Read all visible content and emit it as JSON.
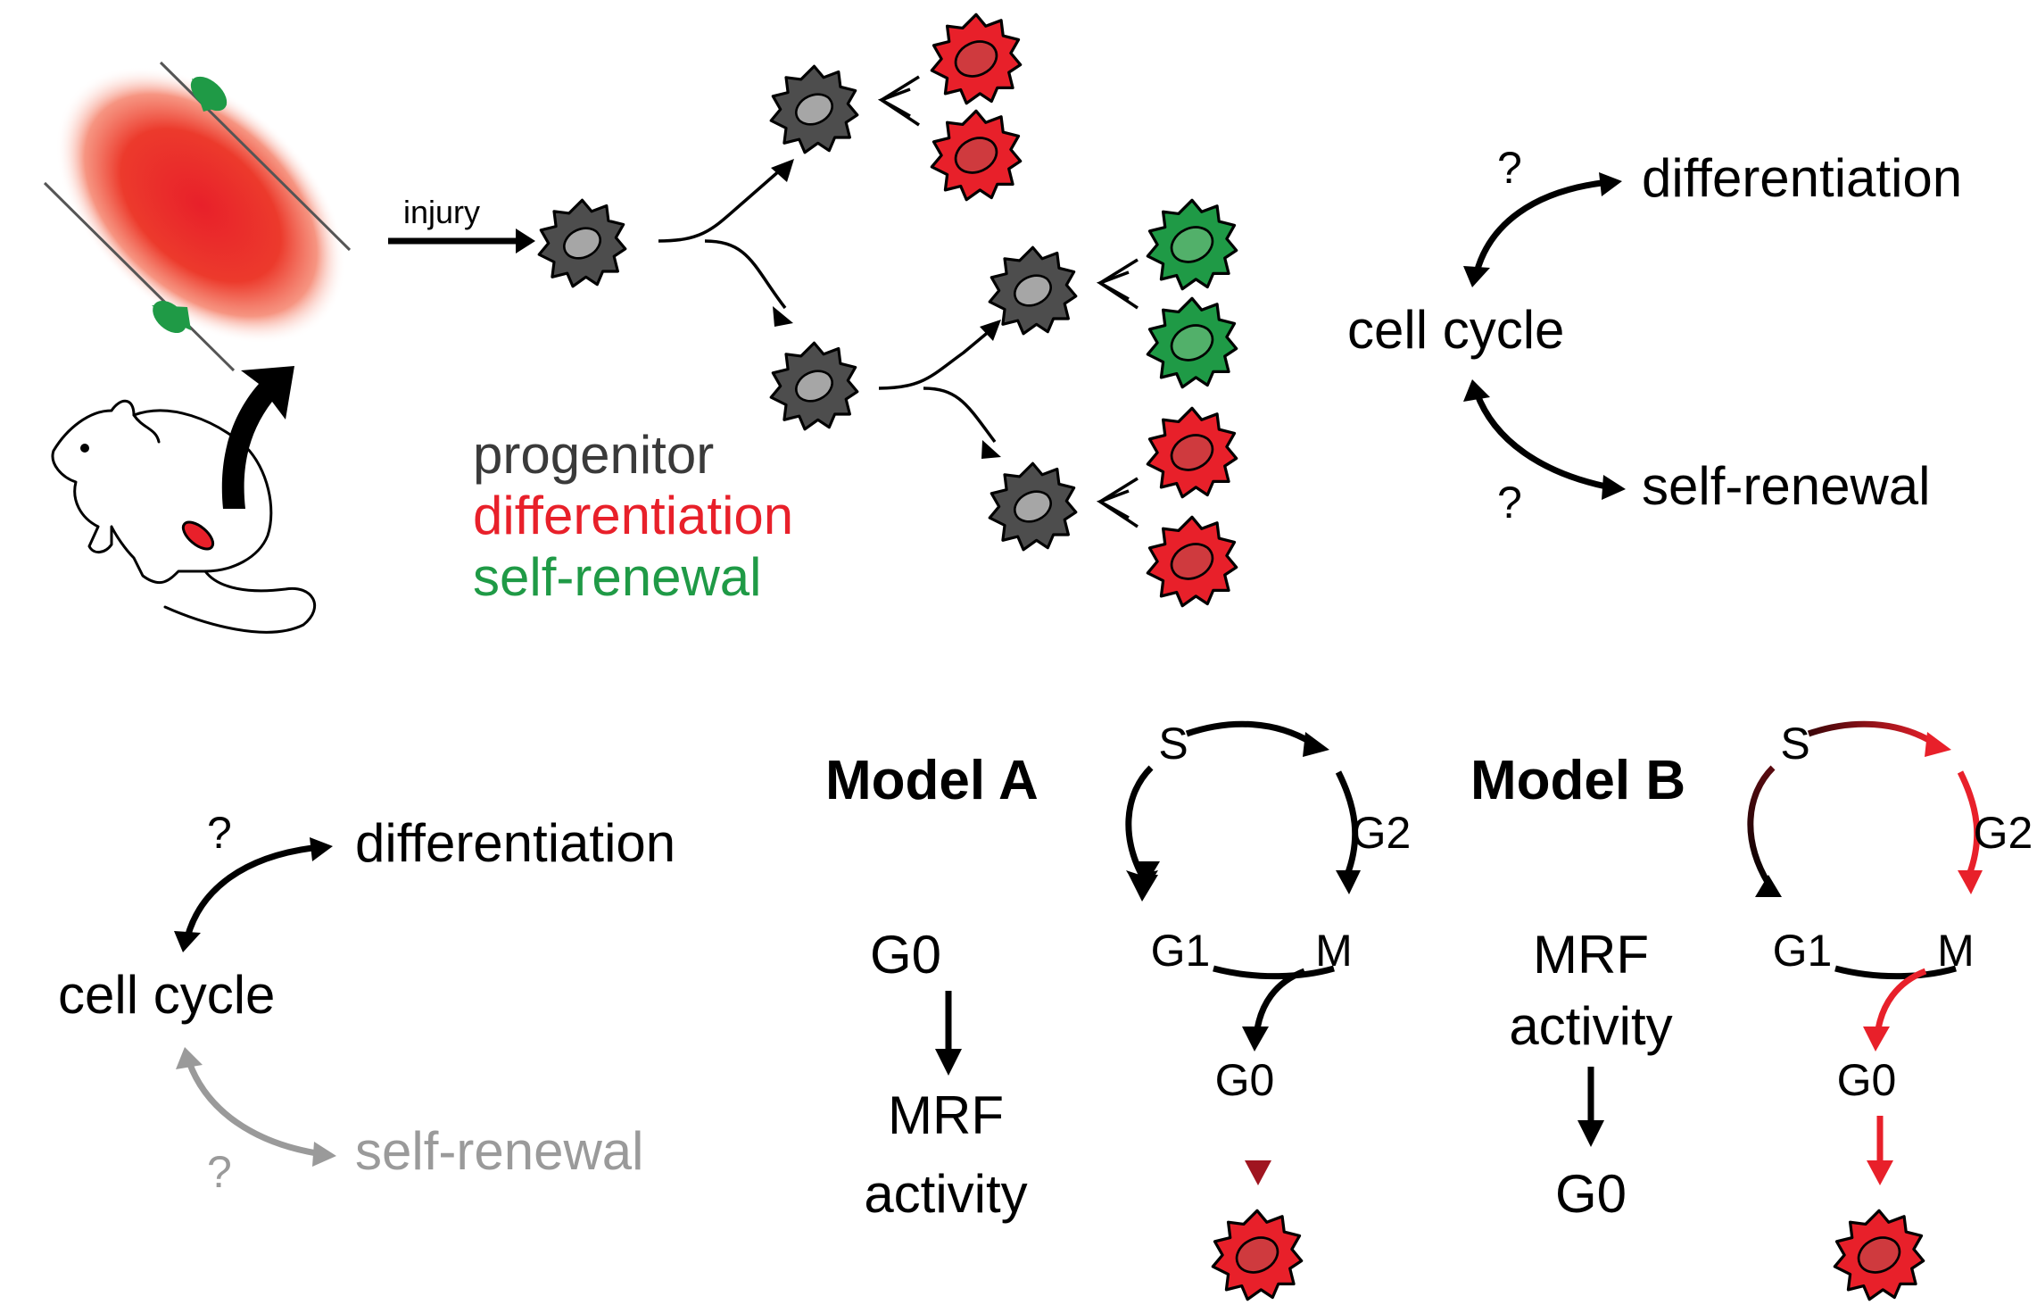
{
  "colors": {
    "black": "#000000",
    "progenitor_gray": "#3a3a3a",
    "differentiation_red": "#e8202a",
    "self_renewal_green": "#1f9a46",
    "muted_gray": "#9a9a9a",
    "dark_red": "#7a1016",
    "cell_dark": "#4d4d4d",
    "cell_light_nucleus": "#a6a6a6"
  },
  "top": {
    "injury_label": "injury",
    "legend": {
      "progenitor": "progenitor",
      "differentiation": "differentiation",
      "self_renewal": "self-renewal"
    },
    "cycle_diagram": {
      "cell_cycle": "cell cycle",
      "differentiation": "differentiation",
      "self_renewal": "self-renewal",
      "question_top": "?",
      "question_bottom": "?"
    }
  },
  "bottom_left": {
    "cell_cycle": "cell cycle",
    "differentiation": "differentiation",
    "self_renewal": "self-renewal",
    "question_top": "?",
    "question_bottom": "?"
  },
  "model_a": {
    "title": "Model A",
    "g0": "G0",
    "mrf_line1": "MRF",
    "mrf_line2": "activity",
    "cycle": {
      "s": "S",
      "g2": "G2",
      "m": "M",
      "g1": "G1",
      "g0": "G0"
    }
  },
  "model_b": {
    "title": "Model B",
    "mrf_line1": "MRF",
    "mrf_line2": "activity",
    "g0": "G0",
    "cycle": {
      "s": "S",
      "g2": "G2",
      "m": "M",
      "g1": "G1",
      "g0": "G0"
    }
  }
}
